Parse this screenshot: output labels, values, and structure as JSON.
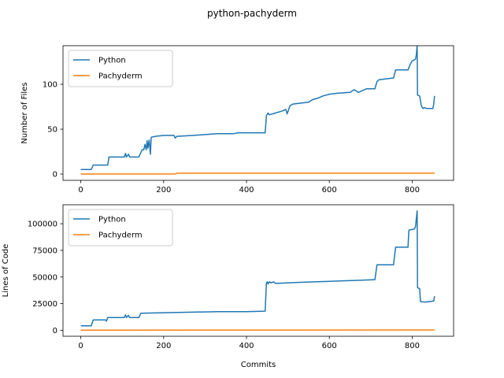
{
  "figure": {
    "title": "python-pachyderm"
  },
  "chart_data": [
    {
      "type": "line",
      "title": "",
      "xlabel": "",
      "ylabel": "Number of Files",
      "xlim": [
        -43,
        900
      ],
      "ylim": [
        -7,
        143
      ],
      "xticks": [
        0,
        200,
        400,
        600,
        800
      ],
      "xtick_labels": [
        "0",
        "200",
        "400",
        "600",
        "800"
      ],
      "yticks": [
        0,
        50,
        100
      ],
      "ytick_labels": [
        "0",
        "50",
        "100"
      ],
      "grid": false,
      "legend": {
        "placement": "top-left"
      },
      "series": [
        {
          "name": "Python",
          "color": "#1f77b4",
          "points": [
            [
              0,
              5
            ],
            [
              25,
              5
            ],
            [
              30,
              10
            ],
            [
              65,
              10
            ],
            [
              68,
              19
            ],
            [
              105,
              19
            ],
            [
              108,
              23
            ],
            [
              110,
              19
            ],
            [
              115,
              22
            ],
            [
              118,
              19
            ],
            [
              140,
              19
            ],
            [
              145,
              24
            ],
            [
              148,
              27
            ],
            [
              152,
              27
            ],
            [
              155,
              33
            ],
            [
              158,
              27
            ],
            [
              160,
              37
            ],
            [
              162,
              29
            ],
            [
              165,
              38
            ],
            [
              168,
              22
            ],
            [
              170,
              41
            ],
            [
              180,
              42
            ],
            [
              200,
              43
            ],
            [
              225,
              43
            ],
            [
              228,
              40
            ],
            [
              232,
              42
            ],
            [
              270,
              43
            ],
            [
              300,
              44
            ],
            [
              330,
              45
            ],
            [
              370,
              45
            ],
            [
              380,
              46
            ],
            [
              430,
              46
            ],
            [
              445,
              46
            ],
            [
              448,
              65
            ],
            [
              452,
              68
            ],
            [
              455,
              66
            ],
            [
              470,
              68
            ],
            [
              485,
              70
            ],
            [
              495,
              72
            ],
            [
              498,
              67
            ],
            [
              505,
              76
            ],
            [
              512,
              78
            ],
            [
              530,
              79
            ],
            [
              550,
              80
            ],
            [
              560,
              83
            ],
            [
              575,
              85
            ],
            [
              585,
              87
            ],
            [
              600,
              89
            ],
            [
              620,
              90
            ],
            [
              650,
              91
            ],
            [
              660,
              94
            ],
            [
              670,
              91
            ],
            [
              690,
              95
            ],
            [
              710,
              95
            ],
            [
              715,
              103
            ],
            [
              720,
              105
            ],
            [
              755,
              107
            ],
            [
              760,
              116
            ],
            [
              790,
              116
            ],
            [
              795,
              122
            ],
            [
              800,
              126
            ],
            [
              808,
              128
            ],
            [
              810,
              133
            ],
            [
              812,
              143
            ],
            [
              813,
              88
            ],
            [
              818,
              87
            ],
            [
              822,
              76
            ],
            [
              826,
              73
            ],
            [
              830,
              74
            ],
            [
              835,
              73
            ],
            [
              850,
              73
            ],
            [
              852,
              78
            ],
            [
              854,
              87
            ]
          ]
        },
        {
          "name": "Pachyderm",
          "color": "#ff7f0e",
          "points": [
            [
              0,
              0
            ],
            [
              228,
              0
            ],
            [
              232,
              1
            ],
            [
              854,
              1
            ]
          ]
        }
      ]
    },
    {
      "type": "line",
      "title": "",
      "xlabel": "Commits",
      "ylabel": "Lines of Code",
      "xlim": [
        -43,
        900
      ],
      "ylim": [
        -5600,
        117800
      ],
      "xticks": [
        0,
        200,
        400,
        600,
        800
      ],
      "xtick_labels": [
        "0",
        "200",
        "400",
        "600",
        "800"
      ],
      "yticks": [
        0,
        25000,
        50000,
        75000,
        100000
      ],
      "ytick_labels": [
        "0",
        "25000",
        "50000",
        "75000",
        "100000"
      ],
      "grid": false,
      "legend": {
        "placement": "top-left"
      },
      "series": [
        {
          "name": "Python",
          "color": "#1f77b4",
          "points": [
            [
              0,
              4200
            ],
            [
              25,
              4200
            ],
            [
              30,
              9800
            ],
            [
              60,
              9800
            ],
            [
              62,
              8500
            ],
            [
              65,
              12000
            ],
            [
              105,
              12000
            ],
            [
              108,
              14500
            ],
            [
              110,
              12000
            ],
            [
              115,
              14000
            ],
            [
              118,
              12000
            ],
            [
              140,
              12000
            ],
            [
              145,
              16000
            ],
            [
              200,
              16500
            ],
            [
              270,
              17000
            ],
            [
              330,
              17500
            ],
            [
              400,
              17500
            ],
            [
              445,
              18000
            ],
            [
              448,
              44000
            ],
            [
              450,
              45500
            ],
            [
              452,
              43500
            ],
            [
              455,
              45500
            ],
            [
              460,
              44500
            ],
            [
              465,
              45500
            ],
            [
              470,
              44000
            ],
            [
              530,
              45000
            ],
            [
              600,
              46000
            ],
            [
              680,
              47000
            ],
            [
              710,
              47500
            ],
            [
              715,
              61500
            ],
            [
              755,
              61500
            ],
            [
              760,
              78000
            ],
            [
              790,
              78000
            ],
            [
              792,
              94000
            ],
            [
              805,
              95000
            ],
            [
              808,
              97000
            ],
            [
              812,
              112000
            ],
            [
              813,
              40000
            ],
            [
              818,
              39000
            ],
            [
              820,
              27000
            ],
            [
              830,
              26500
            ],
            [
              852,
              27500
            ],
            [
              854,
              32000
            ]
          ]
        },
        {
          "name": "Pachyderm",
          "color": "#ff7f0e",
          "points": [
            [
              0,
              200
            ],
            [
              854,
              300
            ]
          ]
        }
      ]
    }
  ]
}
